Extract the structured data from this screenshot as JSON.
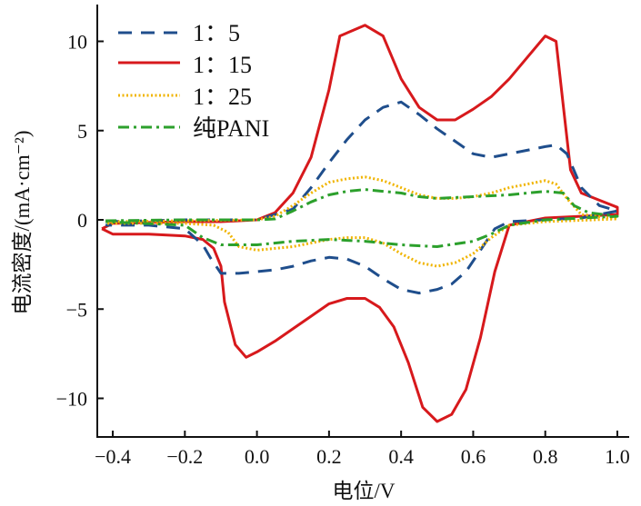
{
  "chart_data": {
    "type": "line",
    "title": "",
    "xlabel": "电位/V",
    "ylabel": "电流密度/(mA·cm⁻²)",
    "xlim": [
      -0.44,
      1.03
    ],
    "ylim": [
      -12.3,
      12.3
    ],
    "xticks": [
      "-0.4",
      "-0.2",
      "0.0",
      "0.2",
      "0.4",
      "0.6",
      "0.8",
      "1.0"
    ],
    "xtick_values": [
      -0.4,
      -0.2,
      0.0,
      0.2,
      0.4,
      0.6,
      0.8,
      1.0
    ],
    "yticks": [
      "10",
      "5",
      "0",
      "-5",
      "-10"
    ],
    "ytick_values": [
      10,
      5,
      0,
      -5,
      -10
    ],
    "grid": false,
    "legend_position": "top-left",
    "series": [
      {
        "name": "1：5",
        "color": "#1f4e8c",
        "style": "dashed",
        "x": [
          -0.42,
          -0.3,
          -0.2,
          -0.1,
          0.0,
          0.1,
          0.15,
          0.2,
          0.25,
          0.3,
          0.35,
          0.4,
          0.45,
          0.5,
          0.55,
          0.6,
          0.65,
          0.7,
          0.75,
          0.8,
          0.83,
          0.86,
          0.9,
          0.95,
          1.0,
          0.9,
          0.7,
          0.66,
          0.62,
          0.58,
          0.54,
          0.5,
          0.45,
          0.4,
          0.35,
          0.3,
          0.25,
          0.2,
          0.15,
          0.1,
          0.05,
          0.0,
          -0.05,
          -0.1,
          -0.13,
          -0.15,
          -0.2,
          -0.3,
          -0.42
        ],
        "y": [
          -0.1,
          -0.05,
          0.0,
          0.0,
          0.0,
          0.6,
          1.8,
          3.2,
          4.5,
          5.6,
          6.3,
          6.6,
          5.9,
          5.1,
          4.4,
          3.7,
          3.5,
          3.7,
          3.9,
          4.1,
          4.2,
          3.7,
          1.8,
          0.8,
          0.5,
          0.1,
          -0.1,
          -0.5,
          -1.7,
          -2.9,
          -3.6,
          -3.9,
          -4.1,
          -3.9,
          -3.3,
          -2.6,
          -2.2,
          -2.1,
          -2.3,
          -2.6,
          -2.8,
          -2.9,
          -3.0,
          -3.0,
          -2.1,
          -1.4,
          -0.5,
          -0.3,
          -0.3
        ]
      },
      {
        "name": "1：15",
        "color": "#d7191c",
        "style": "solid",
        "x": [
          -0.43,
          -0.4,
          -0.3,
          -0.2,
          -0.1,
          0.0,
          0.05,
          0.1,
          0.15,
          0.2,
          0.23,
          0.3,
          0.35,
          0.4,
          0.45,
          0.5,
          0.55,
          0.6,
          0.65,
          0.7,
          0.75,
          0.8,
          0.83,
          0.85,
          0.87,
          0.9,
          0.95,
          1.0,
          1.0,
          0.9,
          0.8,
          0.7,
          0.66,
          0.62,
          0.58,
          0.54,
          0.5,
          0.46,
          0.42,
          0.38,
          0.34,
          0.3,
          0.25,
          0.2,
          0.15,
          0.1,
          0.05,
          0.0,
          -0.03,
          -0.06,
          -0.09,
          -0.1,
          -0.12,
          -0.15,
          -0.2,
          -0.3,
          -0.4,
          -0.43
        ],
        "y": [
          -0.5,
          -0.2,
          -0.15,
          -0.1,
          -0.1,
          0.0,
          0.4,
          1.5,
          3.5,
          7.3,
          10.3,
          10.9,
          10.3,
          7.9,
          6.3,
          5.6,
          5.6,
          6.2,
          6.9,
          7.9,
          9.1,
          10.3,
          10.0,
          6.4,
          2.8,
          1.5,
          1.1,
          0.7,
          0.3,
          0.2,
          0.1,
          -0.3,
          -2.9,
          -6.6,
          -9.5,
          -10.9,
          -11.3,
          -10.5,
          -8.0,
          -6.0,
          -4.9,
          -4.4,
          -4.4,
          -4.7,
          -5.4,
          -6.1,
          -6.8,
          -7.4,
          -7.7,
          -7.0,
          -4.6,
          -2.6,
          -1.6,
          -1.1,
          -0.9,
          -0.8,
          -0.8,
          -0.5
        ]
      },
      {
        "name": "1：25",
        "color": "#f0b400",
        "style": "dotted",
        "x": [
          -0.42,
          -0.2,
          0.0,
          0.05,
          0.1,
          0.15,
          0.2,
          0.25,
          0.3,
          0.35,
          0.4,
          0.45,
          0.5,
          0.55,
          0.6,
          0.65,
          0.7,
          0.75,
          0.8,
          0.83,
          0.86,
          0.9,
          1.0,
          0.8,
          0.7,
          0.65,
          0.6,
          0.55,
          0.5,
          0.45,
          0.4,
          0.35,
          0.3,
          0.25,
          0.2,
          0.15,
          0.1,
          0.05,
          0.0,
          -0.05,
          -0.08,
          -0.12,
          -0.2,
          -0.42
        ],
        "y": [
          -0.1,
          -0.05,
          0.0,
          0.2,
          0.8,
          1.5,
          2.1,
          2.3,
          2.4,
          2.2,
          1.8,
          1.4,
          1.2,
          1.2,
          1.3,
          1.5,
          1.8,
          2.0,
          2.2,
          2.0,
          1.2,
          0.3,
          0.05,
          -0.1,
          -0.3,
          -1.0,
          -1.9,
          -2.4,
          -2.6,
          -2.4,
          -1.9,
          -1.3,
          -1.0,
          -1.0,
          -1.1,
          -1.3,
          -1.5,
          -1.6,
          -1.7,
          -1.5,
          -0.7,
          -0.3,
          -0.2,
          -0.2
        ]
      },
      {
        "name": "纯PANI",
        "color": "#2ca02c",
        "style": "dash-dot",
        "x": [
          -0.42,
          -0.2,
          0.0,
          0.05,
          0.1,
          0.15,
          0.2,
          0.25,
          0.3,
          0.35,
          0.4,
          0.45,
          0.5,
          0.6,
          0.7,
          0.8,
          0.85,
          0.88,
          0.92,
          1.0,
          0.8,
          0.7,
          0.65,
          0.6,
          0.5,
          0.4,
          0.3,
          0.2,
          0.1,
          0.0,
          -0.1,
          -0.15,
          -0.2,
          -0.42
        ],
        "y": [
          -0.05,
          0.0,
          0.0,
          0.05,
          0.5,
          1.0,
          1.4,
          1.6,
          1.7,
          1.6,
          1.5,
          1.3,
          1.2,
          1.3,
          1.4,
          1.6,
          1.5,
          0.8,
          0.4,
          0.2,
          0.0,
          -0.3,
          -0.8,
          -1.2,
          -1.5,
          -1.4,
          -1.2,
          -1.1,
          -1.2,
          -1.4,
          -1.4,
          -1.0,
          -0.3,
          -0.1
        ]
      }
    ]
  }
}
